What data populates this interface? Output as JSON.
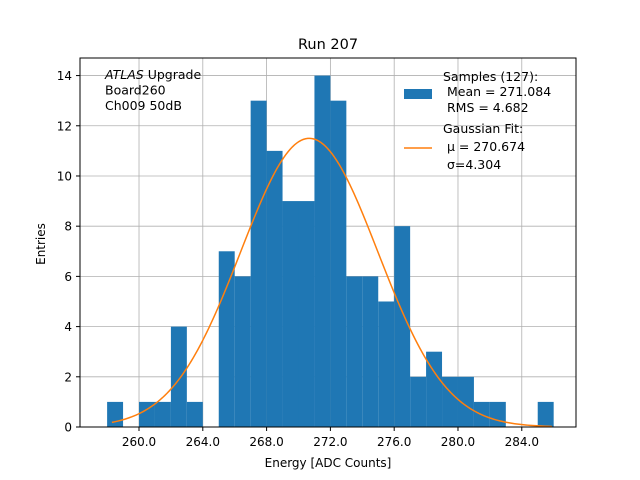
{
  "chart_data": {
    "type": "bar",
    "title": "Run 207",
    "xlabel": "Energy [ADC Counts]",
    "ylabel": "Entries",
    "xlim": [
      256.3,
      287.4
    ],
    "ylim": [
      0,
      14.7
    ],
    "grid": true,
    "legend_placement": "top-right",
    "x_ticks": [
      260.0,
      264.0,
      268.0,
      272.0,
      276.0,
      280.0,
      284.0
    ],
    "x_tick_labels": [
      "260.0",
      "264.0",
      "268.0",
      "272.0",
      "276.0",
      "280.0",
      "284.0"
    ],
    "y_ticks": [
      0,
      2,
      4,
      6,
      8,
      10,
      12,
      14
    ],
    "y_tick_labels": [
      "0",
      "2",
      "4",
      "6",
      "8",
      "10",
      "12",
      "14"
    ],
    "bin_width": 1,
    "bins": [
      {
        "x0": 258,
        "x1": 259,
        "count": 1
      },
      {
        "x0": 260,
        "x1": 261,
        "count": 1
      },
      {
        "x0": 261,
        "x1": 262,
        "count": 1
      },
      {
        "x0": 262,
        "x1": 263,
        "count": 4
      },
      {
        "x0": 263,
        "x1": 264,
        "count": 1
      },
      {
        "x0": 265,
        "x1": 266,
        "count": 7
      },
      {
        "x0": 266,
        "x1": 267,
        "count": 6
      },
      {
        "x0": 267,
        "x1": 268,
        "count": 13
      },
      {
        "x0": 268,
        "x1": 269,
        "count": 11
      },
      {
        "x0": 269,
        "x1": 270,
        "count": 9
      },
      {
        "x0": 270,
        "x1": 271,
        "count": 9
      },
      {
        "x0": 271,
        "x1": 272,
        "count": 14
      },
      {
        "x0": 272,
        "x1": 273,
        "count": 13
      },
      {
        "x0": 273,
        "x1": 274,
        "count": 6
      },
      {
        "x0": 274,
        "x1": 275,
        "count": 6
      },
      {
        "x0": 275,
        "x1": 276,
        "count": 5
      },
      {
        "x0": 276,
        "x1": 277,
        "count": 8
      },
      {
        "x0": 277,
        "x1": 278,
        "count": 2
      },
      {
        "x0": 278,
        "x1": 279,
        "count": 3
      },
      {
        "x0": 279,
        "x1": 280,
        "count": 2
      },
      {
        "x0": 280,
        "x1": 281,
        "count": 2
      },
      {
        "x0": 281,
        "x1": 282,
        "count": 1
      },
      {
        "x0": 282,
        "x1": 283,
        "count": 1
      },
      {
        "x0": 285,
        "x1": 286,
        "count": 1
      }
    ],
    "fit": {
      "name": "Gaussian Fit:",
      "mu": 270.674,
      "sigma": 4.304,
      "peak": 11.5,
      "x_range": [
        258.3,
        285.9
      ]
    },
    "annotation_lines": [
      {
        "italic": "ATLAS",
        "rest": " Upgrade"
      },
      {
        "italic": "",
        "rest": " Board260"
      },
      {
        "italic": "",
        "rest": " Ch009 50dB"
      }
    ],
    "legend": {
      "samples_lines": [
        "Samples (127):",
        " Mean = 271.084",
        " RMS = 4.682"
      ],
      "fit_lines": [
        "Gaussian Fit:",
        " μ = 270.674",
        " σ=4.304"
      ]
    },
    "colors": {
      "bars": "#1f77b4",
      "fit": "#ff7f0e",
      "grid": "#b0b0b0",
      "axes": "#000000"
    }
  }
}
